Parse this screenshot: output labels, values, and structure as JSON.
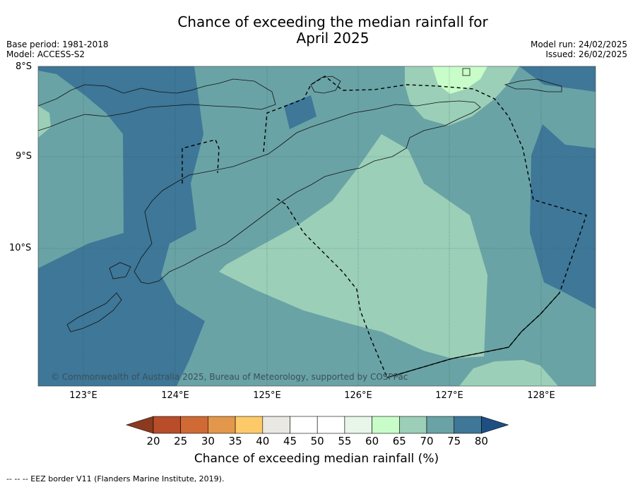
{
  "title_line1": "Chance of exceeding the median rainfall for",
  "title_line2": "April 2025",
  "base_period": "Base period: 1981-2018",
  "model": "Model: ACCESS-S2",
  "model_run": "Model run: 24/02/2025",
  "issued": "Issued: 26/02/2025",
  "lat_labels": [
    "8°S",
    "9°S",
    "10°S"
  ],
  "lon_labels": [
    "123°E",
    "124°E",
    "125°E",
    "126°E",
    "127°E",
    "128°E"
  ],
  "copyright": "© Commonwealth of Australia 2025, Bureau of Meteorology, supported by COSPPac",
  "colorbar": {
    "title": "Chance of exceeding median rainfall (%)",
    "ticks": [
      "20",
      "25",
      "30",
      "35",
      "40",
      "45",
      "50",
      "55",
      "60",
      "65",
      "70",
      "75",
      "80"
    ],
    "colors": [
      "#8b3a1f",
      "#b84d2a",
      "#d06a35",
      "#e3974b",
      "#fdca6a",
      "#e9e8e2",
      "#ffffff",
      "#ffffff",
      "#e8f5e9",
      "#c8fcc8",
      "#9bcfb8",
      "#6aa3a5",
      "#3e7797",
      "#1d4f82"
    ]
  },
  "footer": "--  --  -- EEZ border V11 (Flanders Marine Institute, 2019).",
  "colors": {
    "c60_65": "#c8fcc8",
    "c65_70": "#9bcfb8",
    "c70_75": "#6aa3a5",
    "c75_80": "#3e7797"
  }
}
